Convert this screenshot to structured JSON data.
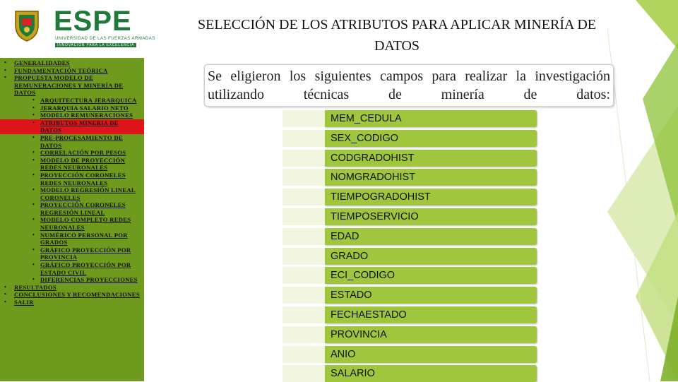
{
  "colors": {
    "sidebar_bg": "#6e9a1e",
    "active_bg": "#e0141b",
    "field_bar": "#9fc63d",
    "brand_green": "#1f7a3a"
  },
  "logo": {
    "name": "ESPE",
    "line1": "UNIVERSIDAD DE LAS FUERZAS ARMADAS",
    "line2": "INNOVACIÓN PARA LA EXCELENCIA",
    "icon": "university-crest-icon"
  },
  "title": "SELECCIÓN DE LOS ATRIBUTOS PARA APLICAR MINERÍA DE DATOS",
  "sidebar": {
    "items": [
      {
        "label": "GENERALIDADES",
        "level": 1,
        "active": false
      },
      {
        "label": "FUNDAMENTACIÓN TEÓRICA",
        "level": 1,
        "active": false
      },
      {
        "label": "PROPUESTA MODELO DE REMUNERACIONES Y MINERÍA DE DATOS",
        "level": 1,
        "active": false
      },
      {
        "label": "ARQUITECTURA JERARQUICA",
        "level": 2,
        "active": false
      },
      {
        "label": "JERARQUIA SALARIO NETO",
        "level": 2,
        "active": false
      },
      {
        "label": "MODELO REMUNERACIONES",
        "level": 2,
        "active": false
      },
      {
        "label": "ATRIBUTOS MINERIA DE DATOS",
        "level": 2,
        "active": true
      },
      {
        "label": "PRE-PROCESAMIENTO DE DATOS",
        "level": 2,
        "active": false
      },
      {
        "label": "CORRELACIÓN POR PESOS",
        "level": 2,
        "active": false
      },
      {
        "label": "MODELO DE PROYECCIÓN REDES NEURONALES",
        "level": 2,
        "active": false
      },
      {
        "label": "PROYECCIÓN CORONELES REDES NEURONALES",
        "level": 2,
        "active": false
      },
      {
        "label": "MODELO REGRESIÓN LINEAL CORONELES",
        "level": 2,
        "active": false
      },
      {
        "label": "PROYECCIÓN CORONELES REGRESIÓN LINEAL",
        "level": 2,
        "active": false
      },
      {
        "label": "MODELO COMPLETO REDES NEURONALES",
        "level": 2,
        "active": false
      },
      {
        "label": "NUMÉRICO PERSONAL POR GRADOS",
        "level": 2,
        "active": false
      },
      {
        "label": "GRÁFICO PROYECCIÓN POR PROVINCIA",
        "level": 2,
        "active": false
      },
      {
        "label": "GRÁFICO PROYECCIÓN POR ESTADO CIVIL",
        "level": 2,
        "active": false
      },
      {
        "label": "DIFERENCIAS PROYECCIONES",
        "level": 2,
        "active": false
      },
      {
        "label": "RESULTADOS",
        "level": 1,
        "active": false
      },
      {
        "label": "CONCLUSIONES Y RECOMENDACIONES",
        "level": 1,
        "active": false
      },
      {
        "label": "SALIR",
        "level": 1,
        "active": false
      }
    ]
  },
  "intro": "Se eligieron los siguientes campos para realizar la investigación utilizando técnicas de minería de datos:",
  "fields": [
    "MEM_CEDULA",
    "SEX_CODIGO",
    "CODGRADOHIST",
    "NOMGRADOHIST",
    "TIEMPOGRADOHIST",
    "TIEMPOSERVICIO",
    "EDAD",
    "GRADO",
    "ECI_CODIGO",
    "ESTADO",
    "FECHAESTADO",
    "PROVINCIA",
    "ANIO",
    "SALARIO"
  ]
}
